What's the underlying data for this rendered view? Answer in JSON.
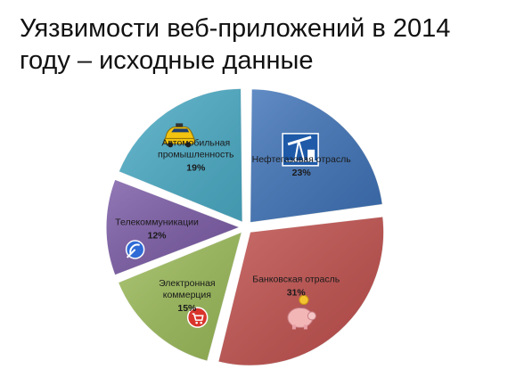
{
  "header": {
    "title_line1": "Уязвимости веб-приложений в 2014",
    "title_line2": "году – исходные данные"
  },
  "chart_data": {
    "type": "pie",
    "title": "Уязвимости веб-приложений в 2014 году – исходные данные",
    "series": [
      {
        "name": "",
        "slices": [
          {
            "label_lines": [
              "Нефтегазовая отрасль"
            ],
            "value": 23,
            "display": "23%",
            "color": "#3f73b8",
            "icon": "oil-pump-icon"
          },
          {
            "label_lines": [
              "Банковская отрасль"
            ],
            "value": 31,
            "display": "31%",
            "color": "#c0504d",
            "icon": "piggy-bank-icon"
          },
          {
            "label_lines": [
              "Электронная",
              "коммерция"
            ],
            "value": 15,
            "display": "15%",
            "color": "#9bbb59",
            "icon": "shopping-cart-icon"
          },
          {
            "label_lines": [
              "Телекоммуникации"
            ],
            "value": 12,
            "display": "12%",
            "color": "#7b5ba6",
            "icon": "satellite-dish-icon"
          },
          {
            "label_lines": [
              "Автомобильная",
              "промышленность"
            ],
            "value": 19,
            "display": "19%",
            "color": "#4bacc6",
            "icon": "taxi-car-icon"
          }
        ]
      }
    ],
    "legend": "none",
    "exploded": true,
    "start_angle_deg": 0
  }
}
